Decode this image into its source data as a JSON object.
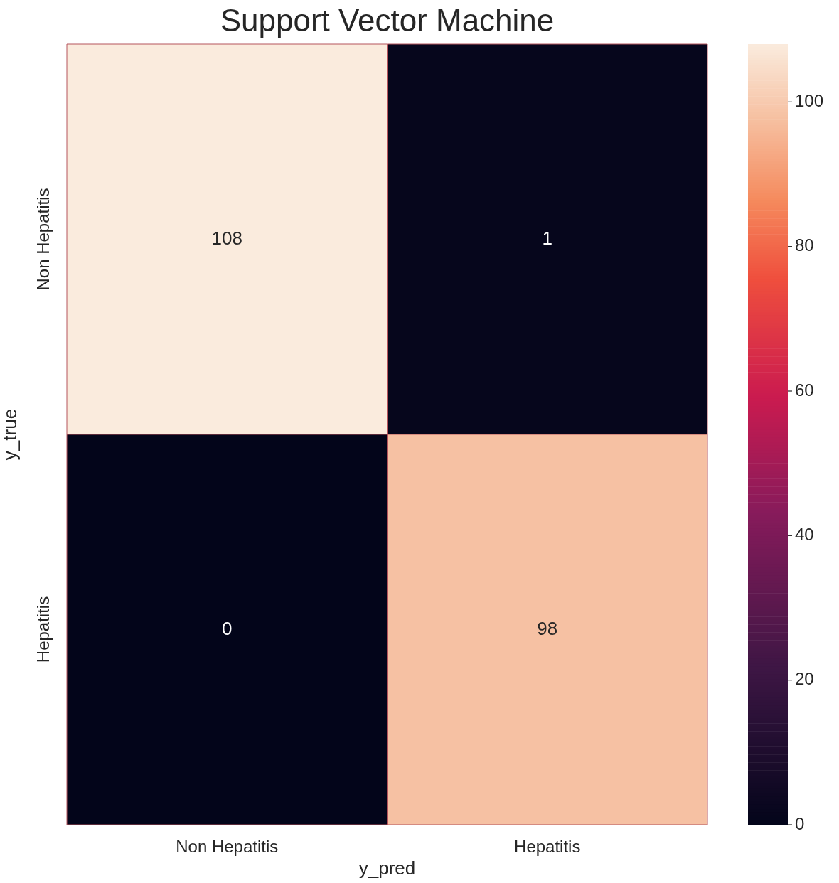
{
  "chart_data": {
    "type": "heatmap",
    "title": "Support Vector Machine",
    "xlabel": "y_pred",
    "ylabel": "y_true",
    "categories": [
      "Non Hepatitis",
      "Hepatitis"
    ],
    "y_categories": [
      "Non Hepatitis",
      "Hepatitis"
    ],
    "cells": [
      [
        108,
        1
      ],
      [
        0,
        98
      ]
    ],
    "clim": [
      0,
      108
    ],
    "cticks": [
      0,
      20,
      40,
      60,
      80,
      100
    ],
    "data_labels": true
  }
}
